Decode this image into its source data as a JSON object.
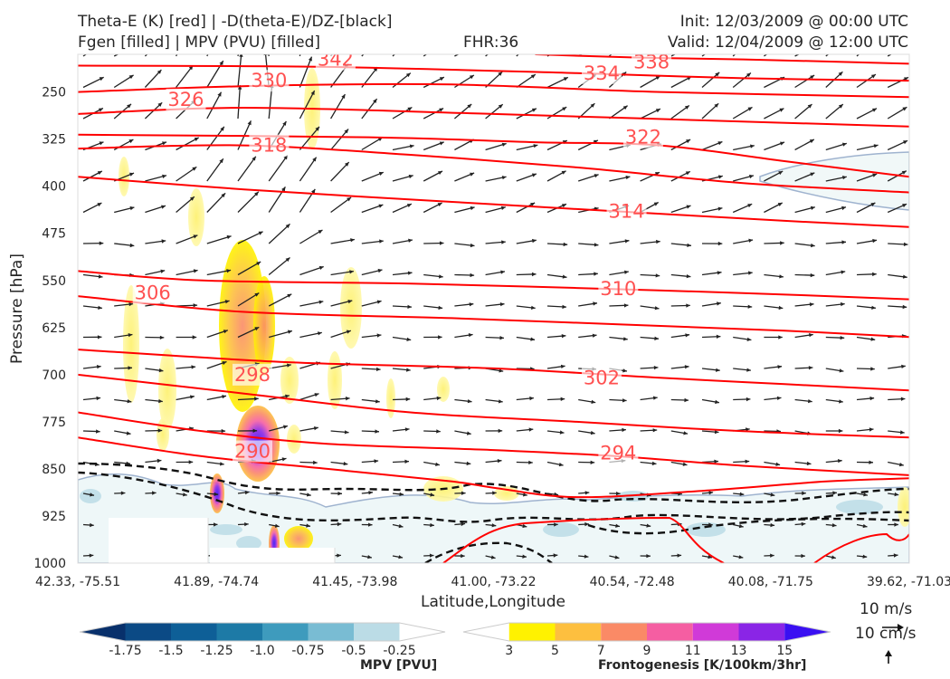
{
  "header": {
    "title_left_1": "Theta-E (K) [red] | -D(theta-E)/DZ-[black]",
    "title_left_2": "Fgen [filled] | MPV (PVU) [filled]",
    "title_center": "FHR:36",
    "title_right_1": "Init: 12/03/2009 @ 00:00 UTC",
    "title_right_2": "Valid: 12/04/2009 @ 12:00 UTC"
  },
  "chart_data": {
    "type": "cross-section",
    "xlabel": "Latitude,Longitude",
    "ylabel": "Pressure [hPa]",
    "x_ticks": [
      "42.33, -75.51",
      "41.89, -74.74",
      "41.45, -73.98",
      "41.00, -73.22",
      "40.54, -72.48",
      "40.08, -71.75",
      "39.62, -71.03"
    ],
    "y_ticks": [
      250,
      325,
      400,
      475,
      550,
      625,
      700,
      775,
      850,
      925,
      1000
    ],
    "ylim": [
      1000,
      190
    ],
    "grid": false,
    "theta_e_contours": [
      {
        "level": "338",
        "points": [
          [
            0.55,
            190
          ],
          [
            0.67,
            195
          ],
          [
            0.8,
            198
          ],
          [
            1.0,
            205
          ]
        ]
      },
      {
        "level": "334",
        "points": [
          [
            0.0,
            208
          ],
          [
            0.3,
            210
          ],
          [
            0.6,
            220
          ],
          [
            0.8,
            228
          ],
          [
            1.0,
            232
          ]
        ]
      },
      {
        "level": "330",
        "points": [
          [
            0.0,
            250
          ],
          [
            0.22,
            240
          ],
          [
            0.45,
            238
          ],
          [
            0.7,
            250
          ],
          [
            1.0,
            258
          ]
        ]
      },
      {
        "level": "326",
        "points": [
          [
            0.0,
            285
          ],
          [
            0.2,
            275
          ],
          [
            0.5,
            285
          ],
          [
            0.75,
            295
          ],
          [
            1.0,
            305
          ]
        ]
      },
      {
        "level": "322",
        "points": [
          [
            0.0,
            318
          ],
          [
            0.35,
            322
          ],
          [
            0.55,
            330
          ],
          [
            0.7,
            335
          ],
          [
            0.85,
            360
          ],
          [
            1.0,
            385
          ]
        ]
      },
      {
        "level": "318",
        "points": [
          [
            0.0,
            340
          ],
          [
            0.2,
            335
          ],
          [
            0.4,
            350
          ],
          [
            0.6,
            370
          ],
          [
            0.8,
            395
          ],
          [
            1.0,
            410
          ]
        ]
      },
      {
        "level": "314",
        "points": [
          [
            0.0,
            385
          ],
          [
            0.2,
            405
          ],
          [
            0.45,
            425
          ],
          [
            0.65,
            440
          ],
          [
            0.85,
            455
          ],
          [
            1.0,
            465
          ]
        ]
      },
      {
        "level": "310",
        "points": [
          [
            0.0,
            535
          ],
          [
            0.15,
            550
          ],
          [
            0.4,
            555
          ],
          [
            0.6,
            562
          ],
          [
            0.8,
            570
          ],
          [
            1.0,
            580
          ]
        ]
      },
      {
        "level": "306",
        "points": [
          [
            0.0,
            575
          ],
          [
            0.2,
            600
          ],
          [
            0.45,
            610
          ],
          [
            0.65,
            620
          ],
          [
            0.85,
            630
          ],
          [
            1.0,
            640
          ]
        ]
      },
      {
        "level": "302",
        "points": [
          [
            0.0,
            660
          ],
          [
            0.25,
            680
          ],
          [
            0.5,
            690
          ],
          [
            0.7,
            705
          ],
          [
            0.85,
            715
          ],
          [
            1.0,
            725
          ]
        ]
      },
      {
        "level": "298",
        "points": [
          [
            0.0,
            700
          ],
          [
            0.2,
            730
          ],
          [
            0.4,
            760
          ],
          [
            0.6,
            775
          ],
          [
            0.8,
            790
          ],
          [
            1.0,
            800
          ]
        ]
      },
      {
        "level": "294",
        "points": [
          [
            0.0,
            760
          ],
          [
            0.15,
            790
          ],
          [
            0.3,
            810
          ],
          [
            0.5,
            820
          ],
          [
            0.65,
            830
          ],
          [
            0.8,
            845
          ],
          [
            1.0,
            860
          ]
        ]
      },
      {
        "level": "290",
        "points": [
          [
            0.0,
            800
          ],
          [
            0.15,
            830
          ],
          [
            0.3,
            850
          ],
          [
            0.45,
            870
          ],
          [
            0.5,
            880
          ],
          [
            0.6,
            895
          ],
          [
            0.75,
            885
          ],
          [
            0.9,
            870
          ],
          [
            1.0,
            865
          ]
        ]
      }
    ],
    "contour_labels": [
      {
        "text": "342",
        "x": 0.31,
        "y": 198
      },
      {
        "text": "338",
        "x": 0.69,
        "y": 202
      },
      {
        "text": "334",
        "x": 0.63,
        "y": 220
      },
      {
        "text": "330",
        "x": 0.23,
        "y": 232
      },
      {
        "text": "326",
        "x": 0.13,
        "y": 262
      },
      {
        "text": "322",
        "x": 0.68,
        "y": 322
      },
      {
        "text": "318",
        "x": 0.23,
        "y": 335
      },
      {
        "text": "314",
        "x": 0.66,
        "y": 440
      },
      {
        "text": "310",
        "x": 0.65,
        "y": 563
      },
      {
        "text": "306",
        "x": 0.09,
        "y": 570
      },
      {
        "text": "302",
        "x": 0.63,
        "y": 705
      },
      {
        "text": "298",
        "x": 0.21,
        "y": 700
      },
      {
        "text": "294",
        "x": 0.65,
        "y": 825
      },
      {
        "text": "290",
        "x": 0.21,
        "y": 822
      }
    ],
    "mpv_colorbar": {
      "label": "MPV [PVU]",
      "ticks": [
        "-1.75",
        "-1.5",
        "-1.25",
        "-1.0",
        "-0.75",
        "-0.5",
        "-0.25"
      ],
      "colors": [
        "#08306b",
        "#0b4a85",
        "#0e5f97",
        "#1d7aa6",
        "#3e9bbd",
        "#79bcd3",
        "#bbdce6",
        "#ffffff"
      ]
    },
    "fgen_colorbar": {
      "label": "Frontogenesis [K/100km/3hr]",
      "ticks": [
        "3",
        "5",
        "7",
        "9",
        "11",
        "13",
        "15"
      ],
      "colors": [
        "#ffffff",
        "#fff200",
        "#fdbf3f",
        "#fa8a66",
        "#f55ea2",
        "#d03ad8",
        "#8a25e6",
        "#3a10f2"
      ]
    },
    "quiver_key": {
      "horizontal": "10 m/s",
      "vertical": "10 cm/s"
    }
  }
}
